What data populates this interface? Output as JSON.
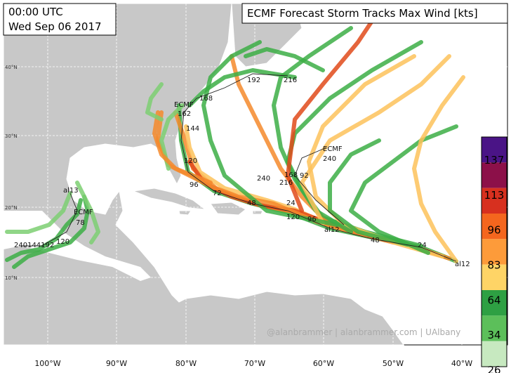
{
  "header": {
    "time": "00:00 UTC",
    "date": "Wed Sep 06 2017",
    "title": "ECMF Forecast Storm Tracks Max Wind [kts]"
  },
  "latitude_labels": [
    "40°N",
    "30°N",
    "20°N",
    "10°N"
  ],
  "longitude_labels": [
    "100°W",
    "90°W",
    "80°W",
    "70°W",
    "60°W",
    "50°W",
    "40°W"
  ],
  "track_labels": [
    "al12",
    "al12",
    "24",
    "48",
    "96",
    "24",
    "120",
    "48",
    "72",
    "96",
    "120",
    "144",
    "162",
    "ECMF",
    "168",
    "192",
    "216",
    "ECMF",
    "240",
    "240",
    "168",
    "216",
    "92",
    "al13",
    "ECMF",
    "78",
    "120",
    "240144192"
  ],
  "watermark": "@alanbrammer | alanbrammer.com | UAlbany",
  "colorbar": {
    "labels": [
      137,
      113,
      96,
      83,
      64,
      34,
      26
    ],
    "colors": [
      "#4a1486",
      "#8c1049",
      "#d7301f",
      "#f4661e",
      "#fd9b3a",
      "#fed466",
      "#2ea043",
      "#5cbf5a",
      "#c7e9c0"
    ]
  }
}
